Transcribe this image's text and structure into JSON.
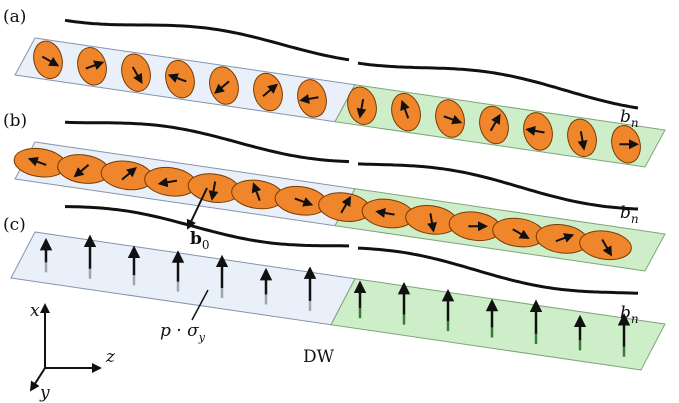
{
  "panels": [
    {
      "label": "(a)",
      "field_label": {
        "main": "b",
        "sub": "n"
      }
    },
    {
      "label": "(b)",
      "field_label": {
        "main": "b",
        "sub": "n"
      }
    },
    {
      "label": "(c)",
      "field_label": {
        "main": "b",
        "sub": "n"
      }
    }
  ],
  "b0_label": {
    "main": "b",
    "sub": "0"
  },
  "current_label": {
    "main": "p · σ",
    "sub": "y"
  },
  "domain_wall": "DW",
  "axes": {
    "x": "x",
    "y": "y",
    "z": "z"
  }
}
